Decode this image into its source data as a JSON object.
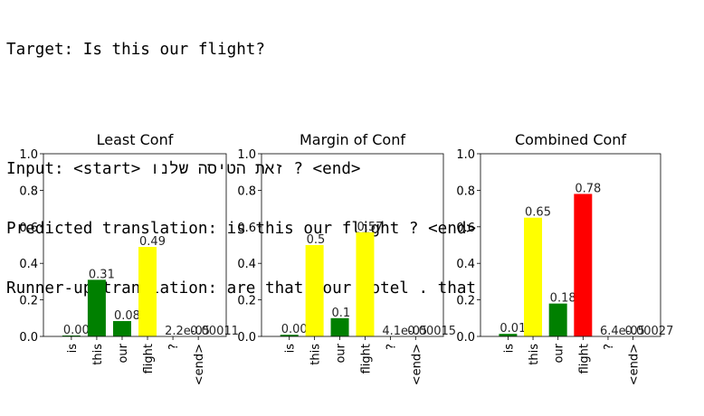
{
  "output": {
    "target": "Target: Is this our flight?",
    "input": "Input: <start> זאת הטיסה שלנו ? <end>",
    "predicted": "Predicted translation: is this our flight ? <end>",
    "runner_up": "Runner-up translation: are that your hotel . that"
  },
  "chart_data": [
    {
      "type": "bar",
      "title": "Least Conf",
      "categories": [
        "is",
        "this",
        "our",
        "flight",
        "?",
        "<end>"
      ],
      "values": [
        0.0049,
        0.31,
        0.084,
        0.49,
        2.2e-05,
        0.00011
      ],
      "labels": [
        "0.0049",
        "0.31",
        "0.084",
        "0.49",
        "2.2e-05",
        "0.00011"
      ],
      "colors": [
        "#008000",
        "#008000",
        "#008000",
        "#ffff00",
        "#008000",
        "#008000"
      ],
      "ylim": [
        0,
        1.0
      ],
      "yticks": [
        "0.0",
        "0.2",
        "0.4",
        "0.6",
        "0.8",
        "1.0"
      ]
    },
    {
      "type": "bar",
      "title": "Margin of Conf",
      "categories": [
        "is",
        "this",
        "our",
        "flight",
        "?",
        "<end>"
      ],
      "values": [
        0.009,
        0.5,
        0.1,
        0.57,
        4.1e-05,
        0.00015
      ],
      "labels": [
        "0.009",
        "0.5",
        "0.1",
        "0.57",
        "4.1e-05",
        "0.00015"
      ],
      "colors": [
        "#008000",
        "#ffff00",
        "#008000",
        "#ffff00",
        "#008000",
        "#008000"
      ],
      "ylim": [
        0,
        1.0
      ],
      "yticks": [
        "0.0",
        "0.2",
        "0.4",
        "0.6",
        "0.8",
        "1.0"
      ]
    },
    {
      "type": "bar",
      "title": "Combined Conf",
      "categories": [
        "is",
        "this",
        "our",
        "flight",
        "?",
        "<end>"
      ],
      "values": [
        0.014,
        0.65,
        0.18,
        0.78,
        6.4e-05,
        0.00027
      ],
      "labels": [
        "0.014",
        "0.65",
        "0.18",
        "0.78",
        "6.4e-05",
        "0.00027"
      ],
      "colors": [
        "#008000",
        "#ffff00",
        "#008000",
        "#ff0000",
        "#008000",
        "#008000"
      ],
      "ylim": [
        0,
        1.0
      ],
      "yticks": [
        "0.0",
        "0.2",
        "0.4",
        "0.6",
        "0.8",
        "1.0"
      ]
    }
  ]
}
